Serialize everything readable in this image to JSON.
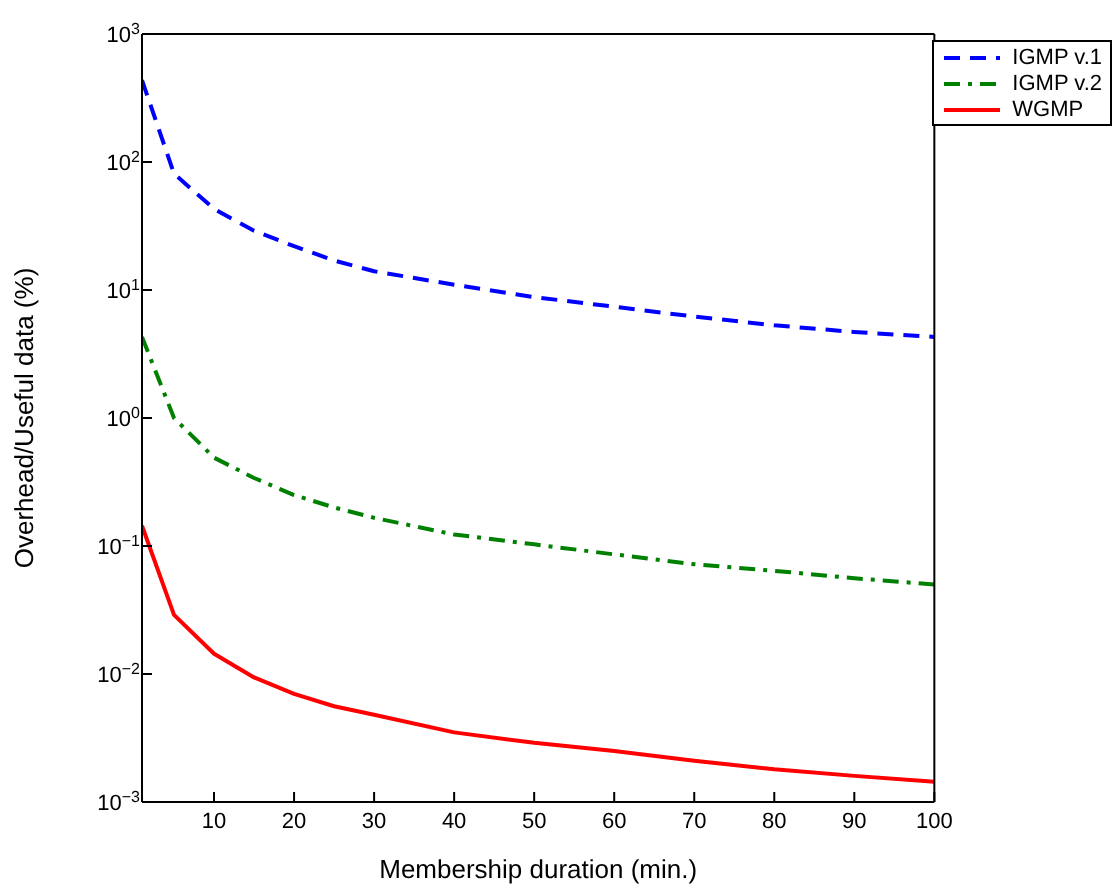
{
  "chart_data": {
    "type": "line",
    "xlabel": "Membership duration (min.)",
    "ylabel": "Overhead/Useful data (%)",
    "x": [
      1,
      5,
      10,
      15,
      20,
      25,
      30,
      40,
      50,
      60,
      70,
      80,
      90,
      100
    ],
    "series": [
      {
        "name": "IGMP v.1",
        "color": "#0000ff",
        "line_style": "dashed",
        "values": [
          436,
          81,
          43,
          29,
          22,
          17,
          14,
          11,
          8.8,
          7.4,
          6.2,
          5.3,
          4.7,
          4.3
        ]
      },
      {
        "name": "IGMP v.2",
        "color": "#008000",
        "line_style": "dashdot",
        "values": [
          4.3,
          1.0,
          0.49,
          0.34,
          0.25,
          0.2,
          0.166,
          0.123,
          0.103,
          0.086,
          0.072,
          0.064,
          0.056,
          0.05
        ]
      },
      {
        "name": "WGMP",
        "color": "#ff0000",
        "line_style": "solid",
        "values": [
          0.144,
          0.029,
          0.0144,
          0.0094,
          0.007,
          0.0056,
          0.0048,
          0.0035,
          0.0029,
          0.0025,
          0.0021,
          0.0018,
          0.0016,
          0.00144
        ]
      }
    ],
    "log": "y",
    "xlim": [
      1,
      100
    ],
    "xticks": [
      10,
      20,
      30,
      40,
      50,
      60,
      70,
      80,
      90,
      100
    ],
    "ylim": [
      0.001,
      1000
    ],
    "yticks": [
      {
        "value": 0.001,
        "label": "10$^{−3}$"
      },
      {
        "value": 0.01,
        "label": "10$^{−2}$"
      },
      {
        "value": 0.1,
        "label": "10$^{−1}$"
      },
      {
        "value": 1,
        "label": "10$^{0}$"
      },
      {
        "value": 10,
        "label": "10$^{1}$"
      },
      {
        "value": 100,
        "label": "10$^{2}$"
      },
      {
        "value": 1000,
        "label": "10$^{3}$"
      }
    ],
    "grid": false,
    "legend": "top right",
    "marker": "none"
  }
}
